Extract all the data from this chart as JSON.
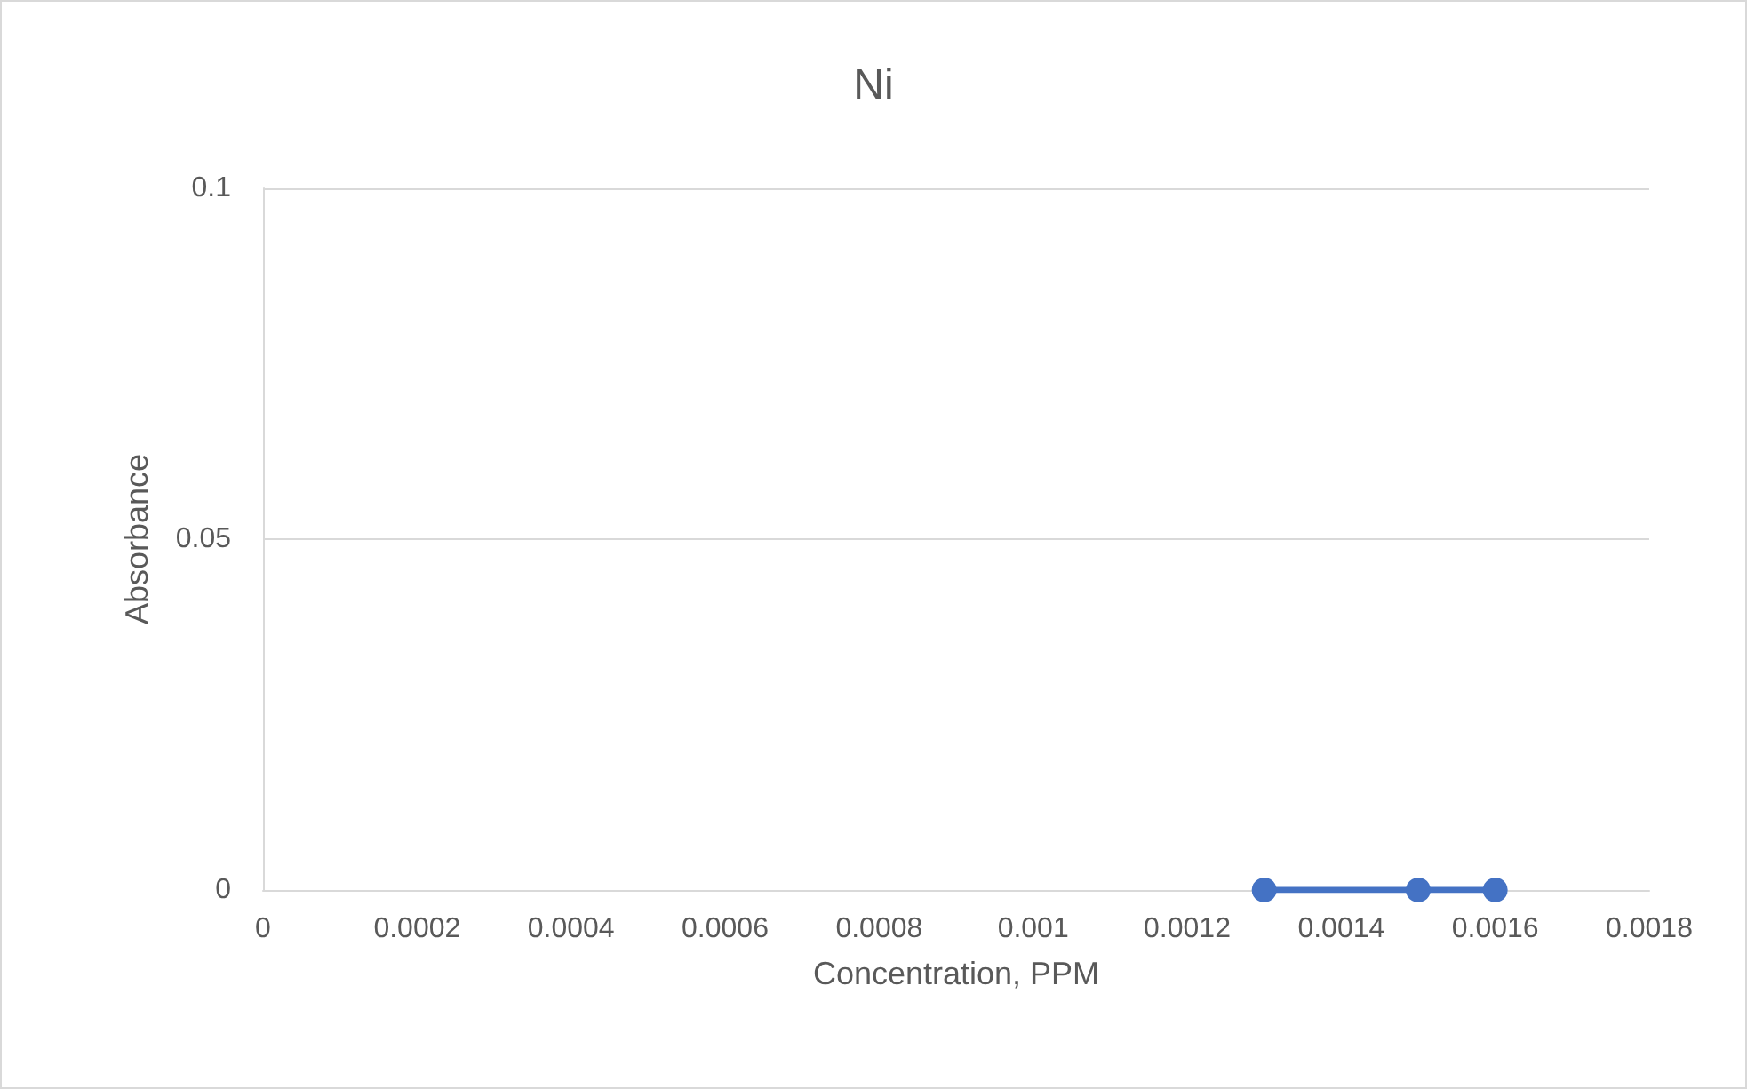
{
  "chart_data": {
    "type": "line",
    "title": "Ni",
    "xlabel": "Concentration, PPM",
    "ylabel": "Absorbance",
    "x": [
      0.0013,
      0.0015,
      0.0016
    ],
    "series": [
      {
        "color": "#4472c4",
        "values": [
          0,
          0,
          0
        ]
      }
    ],
    "xlim": [
      0,
      0.0018
    ],
    "xticks": [
      0,
      0.0002,
      0.0004,
      0.0006,
      0.0008,
      0.001,
      0.0012,
      0.0014,
      0.0016,
      0.0018
    ],
    "ylim": [
      0,
      0.1
    ],
    "yticks": [
      0,
      0.05,
      0.1
    ],
    "grid": "y",
    "marker": "circle",
    "line_style": "solid"
  }
}
